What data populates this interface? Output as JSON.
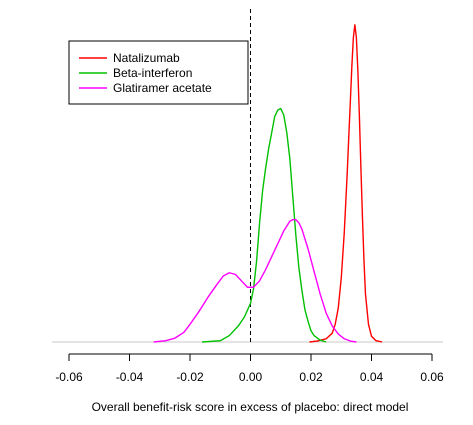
{
  "chart_data": {
    "type": "line",
    "title": "",
    "xlabel": "Overall benefit-risk score in excess of placebo: direct model",
    "ylabel": "",
    "xlim": [
      -0.06,
      0.06
    ],
    "ylim": [
      0,
      1
    ],
    "xticks": [
      -0.06,
      -0.04,
      -0.02,
      0.0,
      0.02,
      0.04,
      0.06
    ],
    "xtick_labels": [
      "-0.06",
      "-0.04",
      "-0.02",
      "0.00",
      "0.02",
      "0.04",
      "0.06"
    ],
    "grid": false,
    "legend_position": "top-left",
    "reference_line": {
      "x": 0,
      "style": "dashed",
      "color": "#000000"
    },
    "baseline_color": "#c8c8c8",
    "series": [
      {
        "name": "Natalizumab",
        "color": "#ff0000",
        "points": [
          [
            0.0195,
            0.0
          ],
          [
            0.022,
            0.003
          ],
          [
            0.025,
            0.01
          ],
          [
            0.027,
            0.027
          ],
          [
            0.028,
            0.055
          ],
          [
            0.029,
            0.105
          ],
          [
            0.03,
            0.198
          ],
          [
            0.031,
            0.34
          ],
          [
            0.032,
            0.53
          ],
          [
            0.0325,
            0.64
          ],
          [
            0.033,
            0.745
          ],
          [
            0.0335,
            0.855
          ],
          [
            0.034,
            0.945
          ],
          [
            0.0345,
            0.985
          ],
          [
            0.035,
            0.945
          ],
          [
            0.0355,
            0.84
          ],
          [
            0.036,
            0.7
          ],
          [
            0.0365,
            0.54
          ],
          [
            0.037,
            0.39
          ],
          [
            0.0375,
            0.255
          ],
          [
            0.038,
            0.15
          ],
          [
            0.039,
            0.055
          ],
          [
            0.04,
            0.018
          ],
          [
            0.0415,
            0.004
          ],
          [
            0.0435,
            0.0
          ]
        ]
      },
      {
        "name": "Beta-interferon",
        "color": "#00c000",
        "points": [
          [
            -0.016,
            0.0
          ],
          [
            -0.01,
            0.004
          ],
          [
            -0.007,
            0.02
          ],
          [
            -0.004,
            0.05
          ],
          [
            -0.002,
            0.078
          ],
          [
            0.0,
            0.12
          ],
          [
            0.001,
            0.165
          ],
          [
            0.002,
            0.25
          ],
          [
            0.003,
            0.37
          ],
          [
            0.004,
            0.47
          ],
          [
            0.005,
            0.54
          ],
          [
            0.006,
            0.6
          ],
          [
            0.007,
            0.65
          ],
          [
            0.008,
            0.7
          ],
          [
            0.009,
            0.72
          ],
          [
            0.01,
            0.725
          ],
          [
            0.011,
            0.705
          ],
          [
            0.012,
            0.65
          ],
          [
            0.013,
            0.57
          ],
          [
            0.014,
            0.45
          ],
          [
            0.015,
            0.33
          ],
          [
            0.016,
            0.23
          ],
          [
            0.017,
            0.16
          ],
          [
            0.018,
            0.1
          ],
          [
            0.019,
            0.065
          ],
          [
            0.02,
            0.035
          ],
          [
            0.021,
            0.02
          ],
          [
            0.023,
            0.006
          ],
          [
            0.025,
            0.0
          ]
        ]
      },
      {
        "name": "Glatiramer acetate",
        "color": "#ff00ff",
        "points": [
          [
            -0.032,
            0.0
          ],
          [
            -0.028,
            0.004
          ],
          [
            -0.025,
            0.012
          ],
          [
            -0.022,
            0.03
          ],
          [
            -0.02,
            0.055
          ],
          [
            -0.017,
            0.095
          ],
          [
            -0.014,
            0.14
          ],
          [
            -0.011,
            0.18
          ],
          [
            -0.009,
            0.205
          ],
          [
            -0.007,
            0.215
          ],
          [
            -0.005,
            0.21
          ],
          [
            -0.003,
            0.19
          ],
          [
            -0.001,
            0.17
          ],
          [
            0.001,
            0.17
          ],
          [
            0.003,
            0.19
          ],
          [
            0.005,
            0.225
          ],
          [
            0.007,
            0.265
          ],
          [
            0.009,
            0.305
          ],
          [
            0.011,
            0.345
          ],
          [
            0.013,
            0.375
          ],
          [
            0.014,
            0.38
          ],
          [
            0.015,
            0.38
          ],
          [
            0.016,
            0.37
          ],
          [
            0.017,
            0.35
          ],
          [
            0.019,
            0.29
          ],
          [
            0.021,
            0.22
          ],
          [
            0.023,
            0.15
          ],
          [
            0.025,
            0.09
          ],
          [
            0.027,
            0.05
          ],
          [
            0.029,
            0.025
          ],
          [
            0.031,
            0.01
          ],
          [
            0.033,
            0.003
          ],
          [
            0.035,
            0.0
          ]
        ]
      }
    ]
  }
}
